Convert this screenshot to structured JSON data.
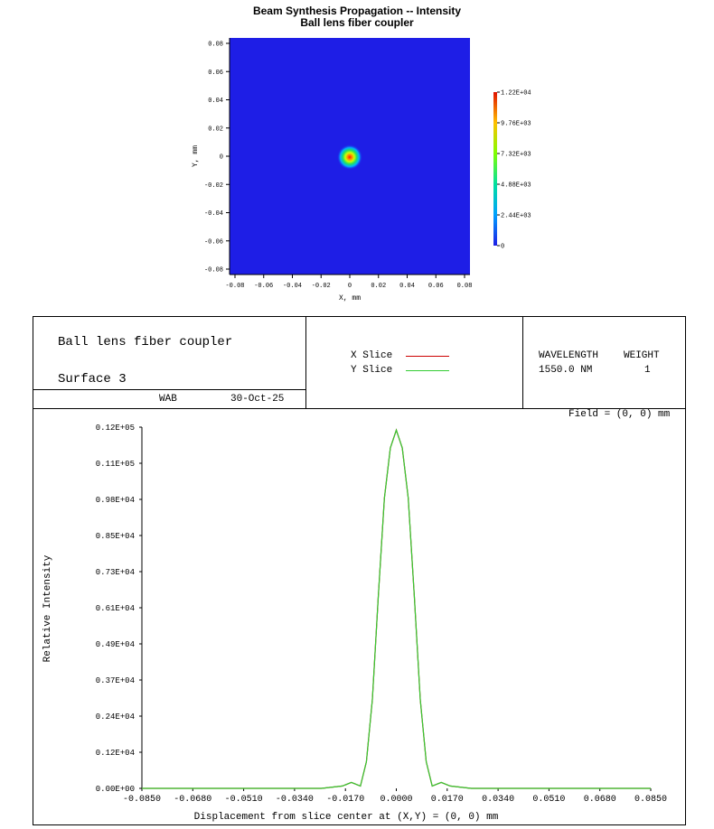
{
  "top_chart": {
    "title": "Beam Synthesis Propagation -- Intensity",
    "subtitle": "Ball lens fiber coupler",
    "xlabel": "X, mm",
    "ylabel": "Y, mm",
    "x_ticks": [
      "-0.08",
      "-0.06",
      "-0.04",
      "-0.02",
      "0",
      "0.02",
      "0.04",
      "0.06",
      "0.08"
    ],
    "y_ticks": [
      "0.08",
      "0.06",
      "0.04",
      "0.02",
      "0",
      "-0.02",
      "-0.04",
      "-0.06",
      "-0.08"
    ],
    "colorbar_ticks": [
      "1.22E+04",
      "9.76E+03",
      "7.32E+03",
      "4.88E+03",
      "2.44E+03",
      "0"
    ],
    "colors": {
      "background": "#1e1ee6",
      "peak": "#ff2200"
    }
  },
  "info": {
    "title": "Ball lens fiber coupler",
    "surface": "Surface 3",
    "user": "WAB",
    "date": "30-Oct-25",
    "legend": [
      {
        "label": "X Slice",
        "color": "#cc0000"
      },
      {
        "label": "Y Slice",
        "color": "#33cc33"
      }
    ],
    "wavelength_header": "WAVELENGTH",
    "weight_header": "WEIGHT",
    "wavelength_value": "1550.0 NM",
    "weight_value": "1",
    "field": "Field = (0, 0) mm"
  },
  "chart_data": {
    "type": "line",
    "title": "",
    "xlabel": "Displacement from slice center at (X,Y) = (0, 0) mm",
    "ylabel": "Relative Intensity",
    "xlim": [
      -0.085,
      0.085
    ],
    "ylim": [
      0,
      12200
    ],
    "x_tick_labels": [
      "-0.0850",
      "-0.0680",
      "-0.0510",
      "-0.0340",
      "-0.0170",
      "0.0000",
      "0.0170",
      "0.0340",
      "0.0510",
      "0.0680",
      "0.0850"
    ],
    "y_tick_labels": [
      "0.00E+00",
      "0.12E+04",
      "0.24E+04",
      "0.37E+04",
      "0.49E+04",
      "0.61E+04",
      "0.73E+04",
      "0.85E+04",
      "0.98E+04",
      "0.11E+05",
      "0.12E+05"
    ],
    "series": [
      {
        "name": "Y Slice",
        "color": "#33cc33",
        "x": [
          -0.085,
          -0.025,
          -0.018,
          -0.015,
          -0.012,
          -0.01,
          -0.008,
          -0.006,
          -0.004,
          -0.002,
          0.0,
          0.002,
          0.004,
          0.006,
          0.008,
          0.01,
          0.012,
          0.015,
          0.018,
          0.025,
          0.085
        ],
        "y": [
          0,
          0,
          80,
          200,
          80,
          900,
          3000,
          6500,
          9800,
          11500,
          12100,
          11500,
          9800,
          6500,
          3000,
          900,
          80,
          200,
          80,
          0,
          0
        ]
      },
      {
        "name": "X Slice",
        "color": "#cc0000",
        "x": [
          -0.085,
          -0.025,
          -0.018,
          -0.015,
          -0.012,
          -0.01,
          -0.008,
          -0.006,
          -0.004,
          -0.002,
          0.0,
          0.002,
          0.004,
          0.006,
          0.008,
          0.01,
          0.012,
          0.015,
          0.018,
          0.025,
          0.085
        ],
        "y": [
          0,
          0,
          80,
          200,
          80,
          900,
          3000,
          6500,
          9800,
          11500,
          12100,
          11500,
          9800,
          6500,
          3000,
          900,
          80,
          200,
          80,
          0,
          0
        ]
      }
    ]
  }
}
